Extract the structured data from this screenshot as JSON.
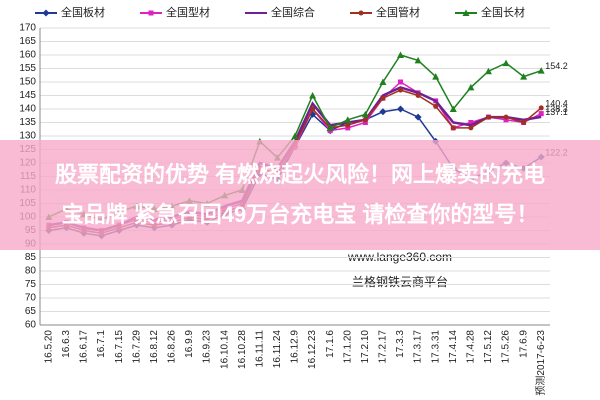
{
  "chart_data": {
    "type": "line",
    "categories": [
      "16.5.20",
      "16.6.3",
      "16.6.17",
      "16.7.1",
      "16.7.15",
      "16.7.29",
      "16.8.12",
      "16.8.26",
      "16.9.9",
      "16.9.23",
      "16.10.14",
      "16.10.28",
      "16.11.11",
      "16.11.24",
      "16.12.9",
      "16.12.23",
      "17.1.6",
      "17.1.20",
      "17.2.10",
      "17.2.17",
      "17.3.3",
      "17.3.17",
      "17.3.31",
      "17.4.14",
      "17.4.28",
      "17.5.12",
      "17.5.26",
      "17.6.9",
      "预测2017-6-23"
    ],
    "series": [
      {
        "name": "全国板材",
        "color": "#1f3a93",
        "marker": "diamond",
        "values": [
          95,
          96,
          94,
          93,
          95,
          97,
          96,
          97,
          99,
          98,
          101,
          103,
          116,
          114,
          126,
          138,
          132,
          135,
          136,
          139,
          140,
          137,
          128,
          118,
          114,
          117,
          120,
          118,
          122.2
        ]
      },
      {
        "name": "全国型材",
        "color": "#e020c0",
        "marker": "square",
        "values": [
          97,
          98,
          96,
          95,
          97,
          99,
          98,
          99,
          101,
          100,
          103,
          105,
          118,
          116,
          126,
          140,
          132,
          133,
          135,
          144,
          150,
          146,
          143,
          133,
          135,
          137,
          136,
          135,
          138.3
        ]
      },
      {
        "name": "全国综合",
        "color": "#702090",
        "marker": "none",
        "values": [
          97,
          98,
          96,
          95,
          97,
          100,
          99,
          100,
          102,
          101,
          104,
          106,
          120,
          118,
          128,
          142,
          134,
          135,
          136,
          145,
          148,
          146,
          143,
          135,
          134,
          137,
          137,
          136,
          137.1
        ]
      },
      {
        "name": "全国管材",
        "color": "#a03020",
        "marker": "circle",
        "values": [
          96,
          97,
          95,
          94,
          96,
          98,
          97,
          98,
          100,
          99,
          102,
          104,
          118,
          116,
          127,
          140,
          133,
          134,
          136,
          144,
          147,
          145,
          141,
          133,
          133,
          137,
          137,
          135,
          140.4
        ]
      },
      {
        "name": "全国长材",
        "color": "#208020",
        "marker": "triangle",
        "values": [
          100,
          103,
          101,
          99,
          102,
          104,
          103,
          104,
          106,
          105,
          108,
          110,
          128,
          122,
          130,
          145,
          133,
          136,
          138,
          150,
          160,
          158,
          152,
          140,
          148,
          154,
          157,
          152,
          154.2
        ]
      }
    ],
    "ylim": [
      60,
      170
    ],
    "yticks": [
      60,
      65,
      70,
      75,
      80,
      85,
      90,
      95,
      100,
      105,
      110,
      115,
      120,
      125,
      130,
      135,
      140,
      145,
      150,
      155,
      160,
      165,
      170
    ],
    "grid": true
  },
  "watermark": {
    "url": "www.lange360.com",
    "brand": "兰格钢铁云商平台"
  },
  "overlay": {
    "lines": [
      "股票配资的优势 有燃烧起火风险！网上爆卖的充电",
      "宝品牌 紧急召回49万台充电宝 请检查你的型号！"
    ]
  }
}
